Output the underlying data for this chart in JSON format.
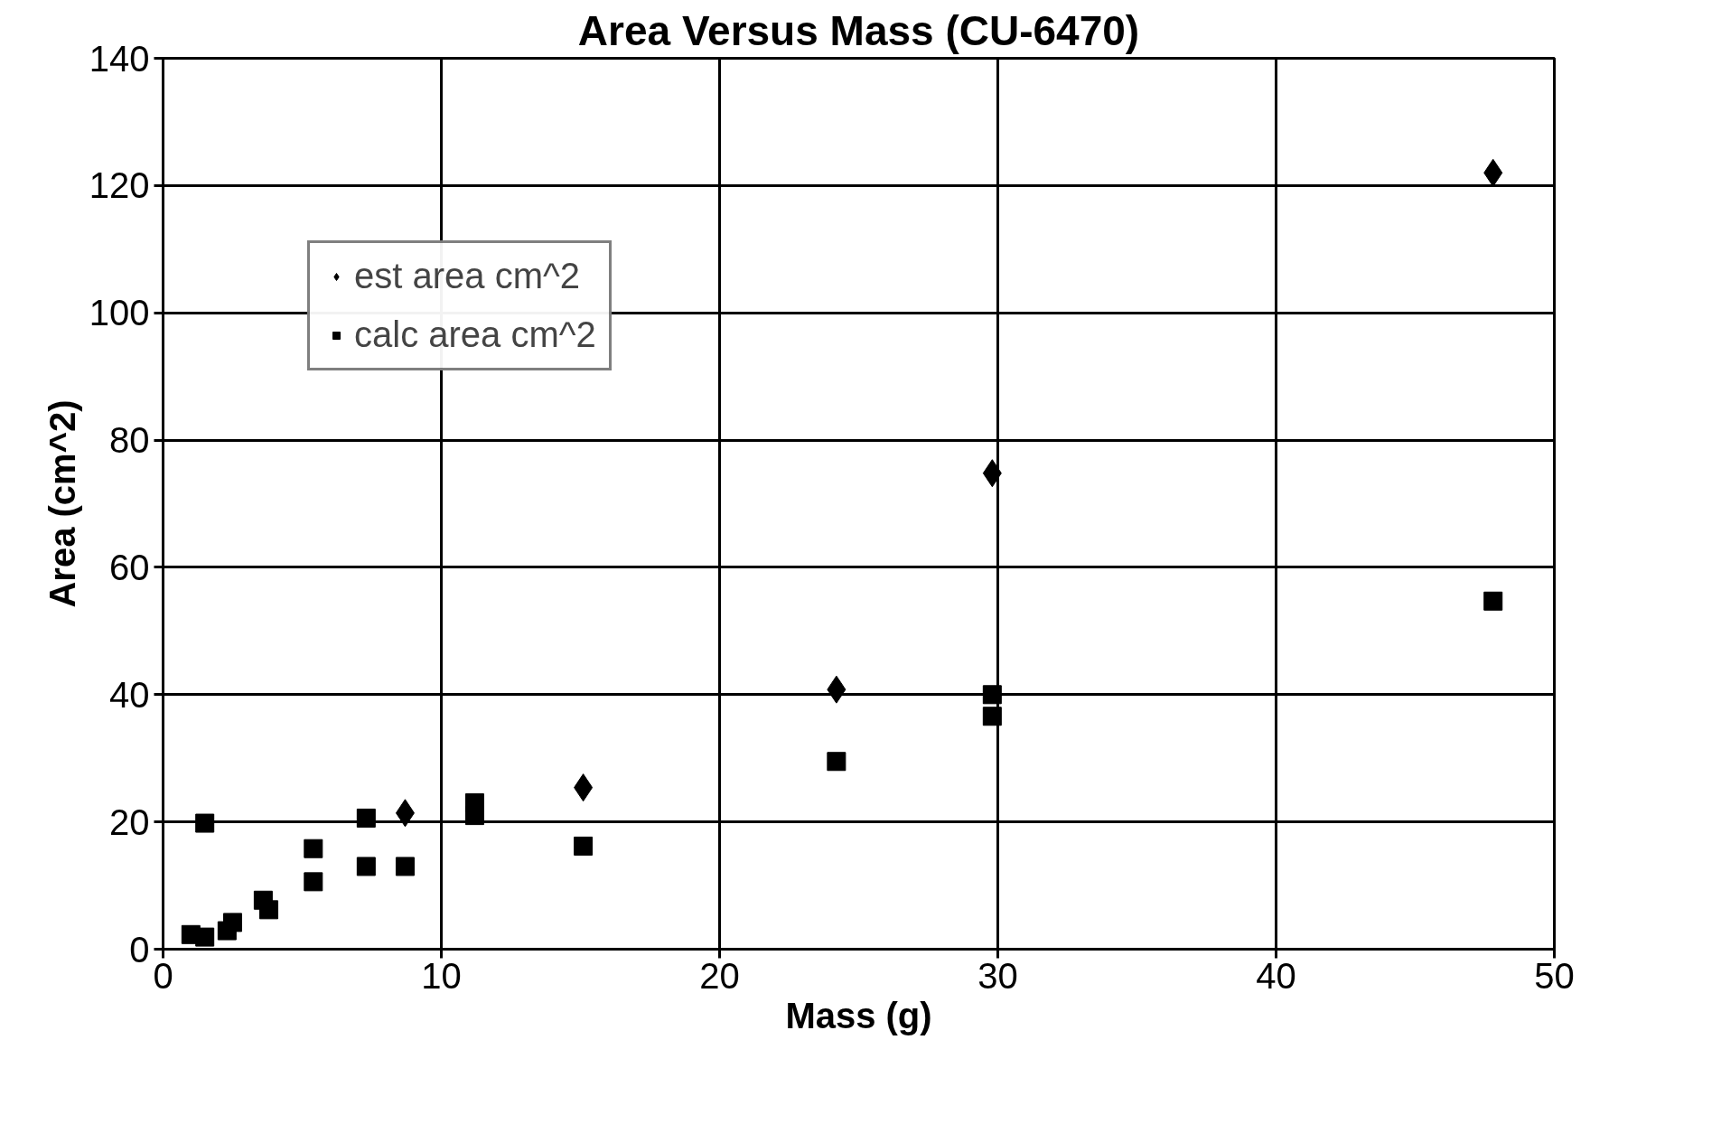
{
  "chart_data": {
    "type": "scatter",
    "title": "Area Versus Mass (CU-6470)",
    "xlabel": "Mass (g)",
    "ylabel": "Area (cm^2)",
    "xlim": [
      0,
      50
    ],
    "xticks": [
      0,
      10,
      20,
      30,
      40,
      50
    ],
    "ylim": [
      0,
      140
    ],
    "yticks": [
      0,
      20,
      40,
      60,
      80,
      100,
      120,
      140
    ],
    "grid": true,
    "legend": "top left",
    "series": [
      {
        "name": "est area cm^2",
        "color": "#000000",
        "marker": "diamond",
        "x": [
          47.8,
          29.8,
          24.2,
          15.1,
          8.7
        ],
        "values": [
          122,
          74.8,
          40.8,
          25.4,
          21.4
        ]
      },
      {
        "name": "calc area cm^2",
        "color": "#000000",
        "marker": "square",
        "x": [
          47.8,
          29.8,
          29.8,
          24.2,
          15.1,
          11.2,
          11.2,
          8.7,
          7.3,
          7.3,
          5.4,
          5.4,
          3.6,
          3.8,
          2.5,
          2.3,
          1.5,
          1.0,
          1.5
        ],
        "values": [
          54.7,
          40,
          36.6,
          29.5,
          16.2,
          23,
          21,
          13,
          13,
          20.6,
          15.8,
          10.6,
          7.7,
          6.2,
          4.2,
          2.9,
          19.8,
          2.3,
          1.9
        ]
      }
    ]
  }
}
